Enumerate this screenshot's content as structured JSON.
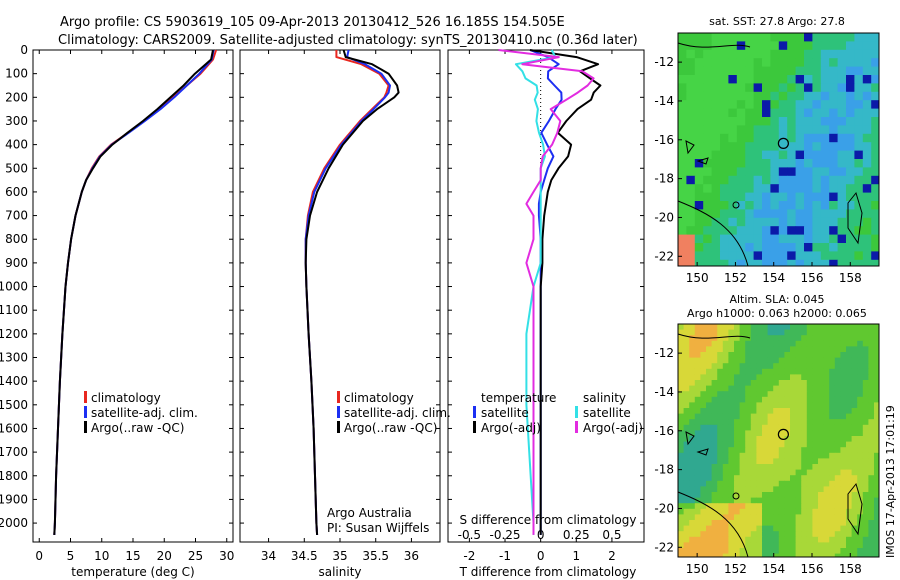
{
  "header": {
    "line1": "Argo profile: CS 5903619_105 09-Apr-2013 20130412_526 16.185S 154.505E",
    "line2": "Climatology: CARS2009. Satellite-adjusted climatology: synTS_20130410.nc (0.36d later)"
  },
  "footer": {
    "org": "Argo Australia",
    "pi": "PI: Susan Wijffels",
    "stamp": "IMOS 17-Apr-2013 17:01:19"
  },
  "colors": {
    "climatology": "#e8271f",
    "satellite": "#1c2ff2",
    "argo": "#000000",
    "sal_sat": "#33e0e6",
    "sal_argo": "#e22ce0"
  },
  "map_sst": {
    "title": "sat. SST: 27.8 Argo: 27.8",
    "xticks": [
      "150",
      "152",
      "154",
      "156",
      "158"
    ],
    "yticks": [
      "-12",
      "-14",
      "-16",
      "-18",
      "-20",
      "-22"
    ]
  },
  "map_sla": {
    "title1": "Altim. SLA: 0.045",
    "title2": "Argo h1000: 0.063 h2000: 0.065",
    "xticks": [
      "150",
      "152",
      "154",
      "156",
      "158"
    ],
    "yticks": [
      "-12",
      "-14",
      "-16",
      "-18",
      "-20",
      "-22"
    ]
  },
  "chart_data": [
    {
      "type": "line",
      "name": "temperature-profile",
      "xlabel": "temperature (deg C)",
      "xlim": [
        -1,
        31
      ],
      "ylim": [
        2080,
        0
      ],
      "xticks": [
        "0",
        "5",
        "10",
        "15",
        "20",
        "25",
        "30"
      ],
      "yticks": [
        "0",
        "100",
        "200",
        "300",
        "400",
        "500",
        "600",
        "700",
        "800",
        "900",
        "1000",
        "1100",
        "1200",
        "1300",
        "1400",
        "1500",
        "1600",
        "1700",
        "1800",
        "1900",
        "2000"
      ],
      "legend": [
        "climatology",
        "satellite-adj. clim.",
        "Argo(..raw -QC)"
      ],
      "depth": [
        0,
        40,
        70,
        100,
        150,
        200,
        250,
        300,
        350,
        400,
        450,
        500,
        550,
        600,
        700,
        800,
        900,
        1000,
        1200,
        1400,
        1600,
        1800,
        2000,
        2050
      ],
      "series": [
        {
          "name": "climatology",
          "values": [
            28.3,
            27.8,
            26.8,
            25.8,
            23.6,
            21.4,
            19.1,
            16.7,
            14.2,
            11.5,
            9.6,
            8.4,
            7.5,
            6.8,
            5.8,
            5.1,
            4.6,
            4.2,
            3.7,
            3.3,
            3.0,
            2.7,
            2.5,
            2.4
          ]
        },
        {
          "name": "satellite-adj. clim.",
          "values": [
            27.9,
            27.6,
            26.6,
            25.6,
            23.6,
            21.6,
            19.4,
            16.9,
            14.3,
            11.6,
            9.7,
            8.5,
            7.5,
            6.8,
            5.8,
            5.1,
            4.6,
            4.2,
            3.7,
            3.3,
            3.0,
            2.7,
            2.5,
            2.4
          ]
        },
        {
          "name": "Argo(..raw -QC)",
          "values": [
            27.8,
            27.5,
            26.2,
            24.9,
            23.1,
            21.0,
            18.9,
            16.6,
            14.1,
            11.7,
            9.8,
            8.6,
            7.5,
            6.8,
            5.8,
            5.1,
            4.6,
            4.2,
            3.7,
            3.3,
            3.0,
            2.7,
            2.5,
            2.4
          ]
        }
      ]
    },
    {
      "type": "line",
      "name": "salinity-profile",
      "xlabel": "salinity",
      "xlim": [
        33.6,
        36.4
      ],
      "ylim": [
        2080,
        0
      ],
      "xticks": [
        "34",
        "34.5",
        "35",
        "35.5",
        "36"
      ],
      "legend": [
        "climatology",
        "satellite-adj. clim.",
        "Argo(..raw -QC)"
      ],
      "depth": [
        0,
        30,
        60,
        100,
        150,
        180,
        200,
        250,
        300,
        400,
        500,
        600,
        700,
        800,
        900,
        1000,
        1200,
        1400,
        1600,
        1800,
        2000,
        2050
      ],
      "series": [
        {
          "name": "climatology",
          "values": [
            34.95,
            34.95,
            35.3,
            35.55,
            35.68,
            35.65,
            35.62,
            35.45,
            35.28,
            35.0,
            34.78,
            34.62,
            34.55,
            34.52,
            34.52,
            34.53,
            34.56,
            34.6,
            34.63,
            34.65,
            34.67,
            34.68
          ]
        },
        {
          "name": "satellite-adj. clim.",
          "values": [
            35.12,
            35.1,
            35.35,
            35.58,
            35.7,
            35.68,
            35.63,
            35.47,
            35.3,
            35.02,
            34.8,
            34.64,
            34.56,
            34.52,
            34.52,
            34.53,
            34.56,
            34.6,
            34.63,
            34.65,
            34.67,
            34.68
          ]
        },
        {
          "name": "Argo(..raw -QC)",
          "values": [
            35.05,
            35.08,
            35.45,
            35.68,
            35.8,
            35.82,
            35.76,
            35.52,
            35.32,
            35.04,
            34.84,
            34.68,
            34.58,
            34.53,
            34.52,
            34.53,
            34.56,
            34.6,
            34.63,
            34.65,
            34.67,
            34.68
          ]
        }
      ]
    },
    {
      "type": "line",
      "name": "difference-profile",
      "xlabel": "T difference from climatology",
      "xlabel2": "S difference from climatology",
      "xlim": [
        -2.6,
        2.9
      ],
      "ylim": [
        2080,
        0
      ],
      "xticks": [
        "-2",
        "-1",
        "0",
        "1",
        "2"
      ],
      "xticks2": [
        "-0.5",
        "-0.25",
        "0",
        "0.25",
        "0.5"
      ],
      "legend_titles": [
        "temperature",
        "salinity"
      ],
      "legend": [
        "satellite",
        "Argo(-adj)",
        "satellite",
        "Argo(-adj)"
      ],
      "depth": [
        0,
        30,
        60,
        90,
        120,
        150,
        180,
        210,
        250,
        300,
        350,
        400,
        450,
        500,
        550,
        600,
        650,
        700,
        800,
        900,
        1000,
        1200,
        1500,
        2000,
        2050
      ],
      "series": [
        {
          "name": "temperature satellite",
          "values": [
            -0.3,
            0.1,
            0.4,
            0.2,
            0.3,
            0.5,
            0.6,
            0.5,
            0.3,
            0.2,
            0.1,
            0.3,
            0.4,
            0.2,
            0.1,
            0.0,
            -0.05,
            -0.05,
            0.0,
            0.0,
            0.0,
            0.0,
            0.0,
            0.0,
            0.0
          ]
        },
        {
          "name": "temperature Argo(-adj)",
          "values": [
            -0.4,
            0.9,
            1.6,
            1.2,
            1.5,
            1.7,
            1.4,
            1.3,
            1.0,
            0.8,
            0.6,
            0.9,
            0.7,
            0.5,
            0.3,
            0.2,
            0.15,
            0.1,
            0.05,
            0.05,
            0.0,
            0.0,
            0.0,
            0.0,
            0.0
          ]
        },
        {
          "name": "salinity satellite",
          "values": [
            0.05,
            0.1,
            -0.15,
            -0.1,
            -0.1,
            -0.05,
            -0.05,
            -0.05,
            0.0,
            0.0,
            0.0,
            0.0,
            0.0,
            0.0,
            0.0,
            0.0,
            0.0,
            0.0,
            0.0,
            0.0,
            -0.05,
            -0.1,
            -0.1,
            -0.05,
            -0.05
          ]
        },
        {
          "name": "salinity Argo(-adj)",
          "values": [
            -0.3,
            0.15,
            -0.1,
            0.3,
            0.35,
            0.3,
            0.25,
            0.2,
            0.1,
            0.15,
            0.1,
            0.05,
            0.0,
            0.0,
            0.0,
            -0.05,
            -0.1,
            -0.05,
            -0.05,
            -0.1,
            -0.05,
            -0.05,
            -0.05,
            -0.05,
            -0.05
          ]
        }
      ]
    },
    {
      "type": "heatmap",
      "name": "sat-sst-map",
      "title": "sat. SST: 27.8 Argo: 27.8",
      "xlim": [
        149,
        159.5
      ],
      "ylim": [
        -22.5,
        -10.5
      ]
    },
    {
      "type": "heatmap",
      "name": "altim-sla-map",
      "title": "Altim. SLA: 0.045 / Argo h1000: 0.063 h2000: 0.065",
      "xlim": [
        149,
        159.5
      ],
      "ylim": [
        -22.5,
        -10.5
      ]
    }
  ]
}
